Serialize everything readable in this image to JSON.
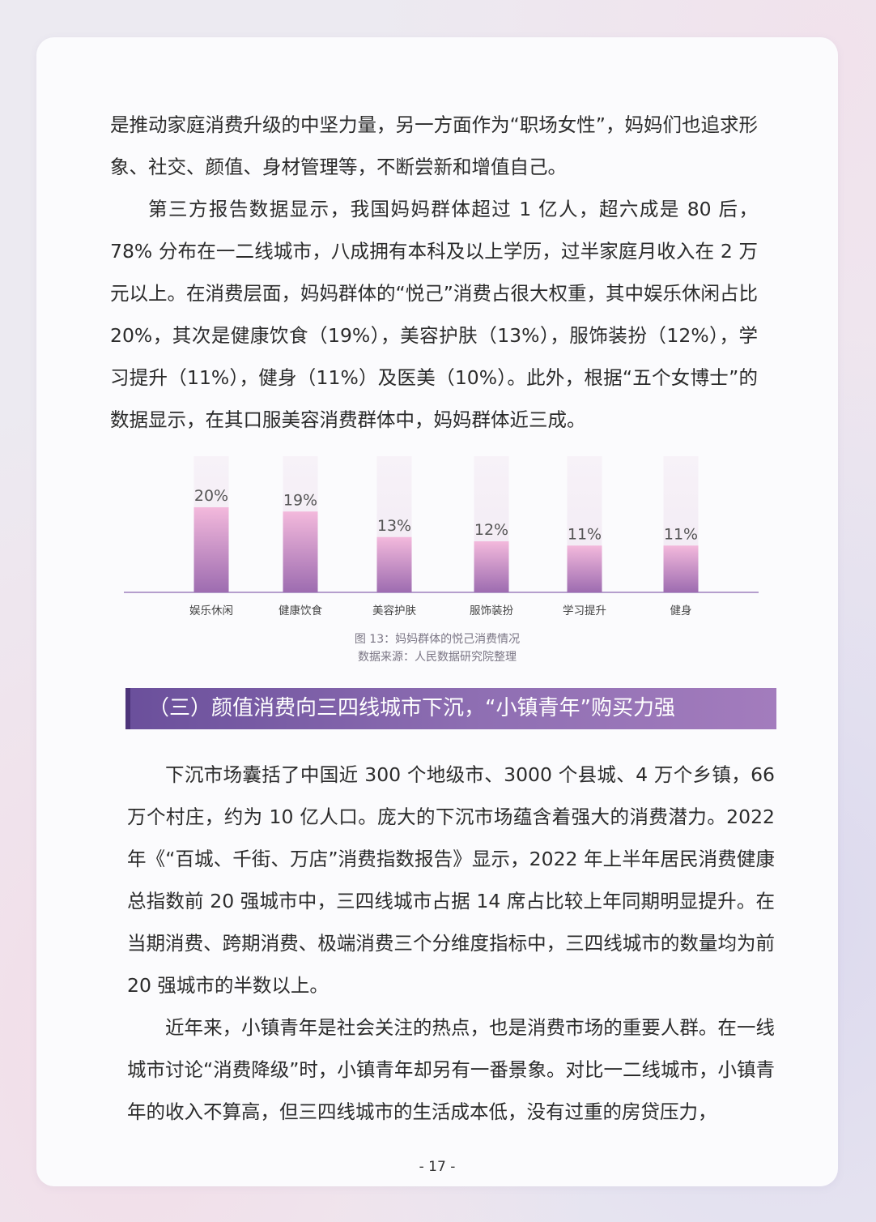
{
  "paragraphs": {
    "p1": "是推动家庭消费升级的中坚力量，另一方面作为“职场女性”，妈妈们也追求形象、社交、颜值、身材管理等，不断尝新和增值自己。",
    "p2": "第三方报告数据显示，我国妈妈群体超过 1 亿人，超六成是 80 后，78% 分布在一二线城市，八成拥有本科及以上学历，过半家庭月收入在 2 万元以上。在消费层面，妈妈群体的“悦己”消费占很大权重，其中娱乐休闲占比 20%，其次是健康饮食（19%），美容护肤（13%），服饰装扮（12%），学习提升（11%），健身（11%）及医美（10%）。此外，根据“五个女博士”的数据显示，在其口服美容消费群体中，妈妈群体近三成。",
    "p3": "下沉市场囊括了中国近 300 个地级市、3000 个县城、4 万个乡镇，66 万个村庄，约为 10 亿人口。庞大的下沉市场蕴含着强大的消费潜力。2022 年《“百城、千街、万店”消费指数报告》显示，2022 年上半年居民消费健康总指数前 20 强城市中，三四线城市占据 14 席占比较上年同期明显提升。在当期消费、跨期消费、极端消费三个分维度指标中，三四线城市的数量均为前 20 强城市的半数以上。",
    "p4": "近年来，小镇青年是社会关注的热点，也是消费市场的重要人群。在一线城市讨论“消费降级”时，小镇青年却另有一番景象。对比一二线城市，小镇青年的收入不算高，但三四线城市的生活成本低，没有过重的房贷压力，"
  },
  "chart_data": {
    "type": "bar",
    "categories": [
      "娱乐休闲",
      "健康饮食",
      "美容护肤",
      "服饰装扮",
      "学习提升",
      "健身"
    ],
    "values": [
      20,
      19,
      13,
      12,
      11,
      11
    ],
    "data_labels": [
      "20%",
      "19%",
      "13%",
      "12%",
      "11%",
      "11%"
    ],
    "ylim": [
      0,
      32
    ],
    "grid": false,
    "colors": {
      "bar_top": "#f3b9dc",
      "bar_bottom": "#9d6cb0",
      "track": "#f1e9f3",
      "axis": "#9e80bd"
    }
  },
  "caption": {
    "title": "图 13：妈妈群体的悦己消费情况",
    "source": "数据来源：人民数据研究院整理"
  },
  "section": {
    "title": "（三）颜值消费向三四线城市下沉，“小镇青年”购买力强"
  },
  "page_number": "- 17 -"
}
